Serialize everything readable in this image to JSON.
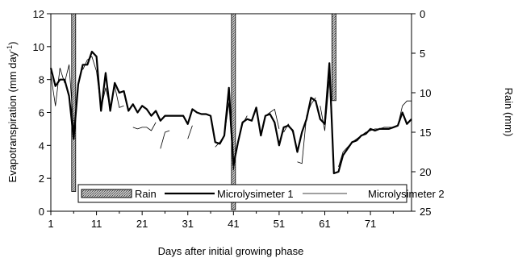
{
  "chart_data": {
    "type": "line",
    "xlabel": "Days after initial growing phase",
    "ylabel_left": "Evapotranspiration (mm day-1)",
    "ylabel_left_main": "Evapotranspiration (mm day",
    "ylabel_left_sup": "-1",
    "ylabel_left_tail": ")",
    "ylabel_right": "Rain (mm)",
    "xlim": [
      1,
      80
    ],
    "x_ticks": [
      1,
      11,
      21,
      31,
      41,
      51,
      61,
      71
    ],
    "x_tick_labels": [
      "1",
      "11",
      "21",
      "31",
      "41",
      "51",
      "61",
      "71"
    ],
    "ylim_left": [
      0,
      12
    ],
    "y_left_ticks": [
      0,
      2,
      4,
      6,
      8,
      10,
      12
    ],
    "y_left_tick_labels": [
      "0",
      "2",
      "4",
      "6",
      "8",
      "10",
      "12"
    ],
    "ylim_right": [
      0,
      25
    ],
    "y_right_inverted": true,
    "y_right_ticks": [
      0,
      5,
      10,
      15,
      20,
      25
    ],
    "y_right_tick_labels": [
      "0",
      "5",
      "10",
      "15",
      "20",
      "25"
    ],
    "grid": false,
    "legend_position": "bottom",
    "series": [
      {
        "name": "Rain",
        "kind": "bar",
        "axis": "right",
        "color": "#a0a0a0",
        "x": [
          6,
          41,
          63
        ],
        "values": [
          22.5,
          24.8,
          11
        ]
      },
      {
        "name": "Microlysimeter 1",
        "kind": "line",
        "axis": "left",
        "color": "#000000",
        "x": [
          1,
          2,
          3,
          4,
          5,
          6,
          7,
          8,
          9,
          10,
          11,
          12,
          13,
          14,
          15,
          16,
          17,
          18,
          19,
          20,
          21,
          22,
          23,
          24,
          25,
          26,
          27,
          28,
          29,
          30,
          31,
          32,
          33,
          34,
          35,
          36,
          37,
          38,
          39,
          40,
          41,
          42,
          43,
          44,
          45,
          46,
          47,
          48,
          49,
          50,
          51,
          52,
          53,
          54,
          55,
          56,
          57,
          58,
          59,
          60,
          61,
          62,
          63,
          64,
          65,
          66,
          67,
          68,
          69,
          70,
          71,
          72,
          73,
          74,
          75,
          76,
          77,
          78,
          79,
          80
        ],
        "values": [
          8.7,
          7.6,
          8.0,
          8.0,
          7.0,
          4.4,
          7.7,
          8.9,
          8.9,
          9.7,
          9.4,
          6.1,
          8.4,
          6.1,
          7.8,
          7.2,
          7.3,
          6.1,
          6.5,
          6.0,
          6.4,
          6.2,
          5.8,
          6.1,
          5.5,
          5.8,
          5.8,
          5.8,
          5.8,
          5.8,
          5.3,
          6.2,
          6.0,
          5.9,
          5.9,
          5.8,
          4.2,
          4.1,
          4.6,
          7.5,
          2.8,
          4.2,
          5.4,
          5.6,
          5.5,
          6.3,
          4.6,
          5.8,
          5.9,
          5.4,
          4.0,
          5.1,
          5.2,
          4.9,
          3.6,
          4.8,
          5.6,
          6.9,
          6.7,
          5.6,
          5.3,
          9.0,
          2.3,
          2.4,
          3.4,
          3.8,
          4.2,
          4.3,
          4.6,
          4.7,
          5.0,
          4.9,
          5.0,
          5.0,
          5.0,
          5.1,
          5.2,
          6.0,
          5.3,
          5.6
        ]
      },
      {
        "name": "Microlysimeter 2",
        "kind": "line",
        "axis": "left",
        "color": "#000000",
        "segments": [
          {
            "x": [
              1,
              2,
              3,
              4,
              5,
              6
            ],
            "values": [
              8.3,
              6.4,
              8.7,
              7.8,
              8.9,
              5.0
            ]
          },
          {
            "x": [
              8,
              9,
              10,
              11,
              12,
              13,
              14,
              15,
              16,
              17
            ],
            "values": [
              8.6,
              9.2,
              9.4,
              8.5,
              6.2,
              7.5,
              6.3,
              7.6,
              6.3,
              6.4
            ]
          },
          {
            "x": [
              19,
              20,
              21,
              22,
              23,
              24
            ],
            "values": [
              5.1,
              5.0,
              5.1,
              5.1,
              4.9,
              5.4
            ]
          },
          {
            "x": [
              25,
              26,
              27
            ],
            "values": [
              3.8,
              4.8,
              4.9
            ]
          },
          {
            "x": [
              31,
              32
            ],
            "values": [
              4.4,
              5.2
            ]
          },
          {
            "x": [
              37,
              38,
              39,
              40,
              41,
              42,
              43,
              44
            ],
            "values": [
              3.9,
              4.2,
              4.6,
              6.6,
              2.5,
              4.3,
              5.3,
              5.8
            ]
          },
          {
            "x": [
              48,
              49,
              50,
              51
            ],
            "values": [
              5.8,
              6.0,
              6.2,
              5.0
            ]
          },
          {
            "x": [
              52,
              53,
              54
            ],
            "values": [
              4.8,
              5.3,
              4.8
            ]
          },
          {
            "x": [
              55,
              56,
              57,
              58,
              59
            ],
            "values": [
              3.0,
              2.9,
              5.8,
              6.5,
              6.9
            ]
          },
          {
            "x": [
              60,
              61,
              62,
              63
            ],
            "values": [
              6.4,
              4.9,
              8.0,
              2.6
            ]
          },
          {
            "x": [
              64,
              65,
              66,
              67,
              68,
              69,
              70,
              71,
              72,
              73,
              74,
              75,
              76,
              77,
              78,
              79,
              80
            ],
            "values": [
              2.7,
              3.6,
              3.9,
              4.2,
              4.4,
              4.6,
              4.8,
              4.9,
              5.0,
              5.0,
              5.1,
              5.1,
              5.1,
              5.2,
              6.4,
              6.7,
              6.7
            ]
          }
        ]
      }
    ],
    "legend": [
      {
        "label": "Rain",
        "kind": "bar"
      },
      {
        "label": "Microlysimeter 1",
        "kind": "thick-line"
      },
      {
        "label": "Microlysimeter 2",
        "kind": "thin-line"
      }
    ]
  }
}
